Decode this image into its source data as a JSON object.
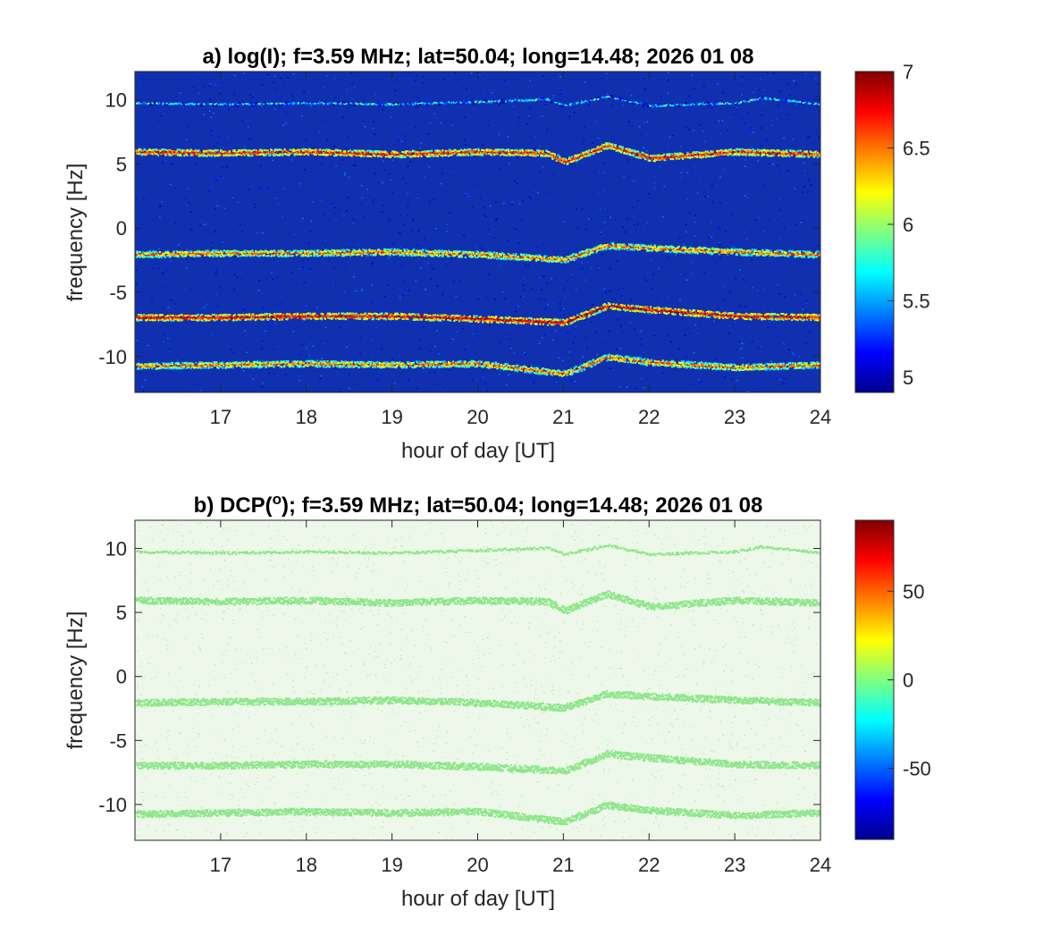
{
  "chart_data": [
    {
      "type": "heatmap",
      "panel": "a",
      "title": "a) log(I); f=3.59 MHz;  lat=50.04; long=14.48; 2026 01 08",
      "xlabel": "hour of day [UT]",
      "ylabel": "frequency [Hz]",
      "xlim": [
        16,
        24
      ],
      "ylim": [
        -12.8,
        12.2
      ],
      "xticks": [
        "17",
        "18",
        "19",
        "20",
        "21",
        "22",
        "23",
        "24"
      ],
      "xtick_values": [
        17,
        18,
        19,
        20,
        21,
        22,
        23,
        24
      ],
      "yticks": [
        "10",
        "5",
        "0",
        "-5",
        "-10"
      ],
      "ytick_values": [
        10,
        5,
        0,
        -5,
        -10
      ],
      "colorbar": {
        "range": [
          4.9,
          7
        ],
        "ticks": [
          "7",
          "6.5",
          "6",
          "5.5",
          "5"
        ],
        "tick_values": [
          7,
          6.5,
          6,
          5.5,
          5
        ],
        "colormap": "jet"
      },
      "background_value": 5.0,
      "traces": [
        {
          "center_hz": 9.8,
          "intensity": 5.9,
          "hours": [
            16,
            17,
            18,
            19,
            20,
            20.8,
            21,
            21.5,
            22,
            23,
            23.3,
            24
          ],
          "freq": [
            9.8,
            9.7,
            9.8,
            9.7,
            9.9,
            10.1,
            9.6,
            10.3,
            9.6,
            9.8,
            10.2,
            9.7
          ]
        },
        {
          "center_hz": 5.9,
          "intensity": 6.8,
          "hours": [
            16,
            17,
            18,
            19,
            20,
            20.8,
            21,
            21.5,
            22,
            23,
            24
          ],
          "freq": [
            6.0,
            5.9,
            6.0,
            5.8,
            6.0,
            5.9,
            5.2,
            6.5,
            5.5,
            6.0,
            5.8
          ]
        },
        {
          "center_hz": -1.9,
          "intensity": 6.6,
          "hours": [
            16,
            17,
            18,
            19,
            20,
            21,
            21.5,
            22,
            23,
            24
          ],
          "freq": [
            -2.0,
            -1.9,
            -1.9,
            -1.8,
            -2.0,
            -2.4,
            -1.3,
            -1.5,
            -1.8,
            -2.0
          ]
        },
        {
          "center_hz": -6.9,
          "intensity": 6.9,
          "hours": [
            16,
            17,
            18,
            19,
            20,
            21,
            21.5,
            22,
            23,
            24
          ],
          "freq": [
            -6.9,
            -6.9,
            -6.8,
            -6.8,
            -7.0,
            -7.3,
            -6.0,
            -6.3,
            -6.8,
            -6.9
          ]
        },
        {
          "center_hz": -10.7,
          "intensity": 6.6,
          "hours": [
            16,
            17,
            18,
            19,
            20,
            21,
            21.5,
            22,
            23,
            24
          ],
          "freq": [
            -10.7,
            -10.6,
            -10.5,
            -10.6,
            -10.5,
            -11.3,
            -10.0,
            -10.4,
            -10.8,
            -10.6
          ]
        }
      ]
    },
    {
      "type": "heatmap",
      "panel": "b",
      "title": "b) DCP(°); f=3.59 MHz;  lat=50.04; long=14.48; 2026 01 08",
      "title_parts": {
        "prefix": "b) DCP(",
        "superscript": "o",
        "suffix": "); f=3.59 MHz;  lat=50.04; long=14.48; 2026 01 08"
      },
      "xlabel": "hour of day [UT]",
      "ylabel": "frequency [Hz]",
      "xlim": [
        16,
        24
      ],
      "ylim": [
        -12.8,
        12.2
      ],
      "xticks": [
        "17",
        "18",
        "19",
        "20",
        "21",
        "22",
        "23",
        "24"
      ],
      "xtick_values": [
        17,
        18,
        19,
        20,
        21,
        22,
        23,
        24
      ],
      "yticks": [
        "10",
        "5",
        "0",
        "-5",
        "-10"
      ],
      "ytick_values": [
        10,
        5,
        0,
        -5,
        -10
      ],
      "colorbar": {
        "range": [
          -90,
          90
        ],
        "ticks": [
          "50",
          "0",
          "-50"
        ],
        "tick_values": [
          50,
          0,
          -50
        ],
        "colormap": "jet"
      },
      "value": 0,
      "background_color": "#eef8ea",
      "trace_color": "#8ee68a"
    }
  ]
}
